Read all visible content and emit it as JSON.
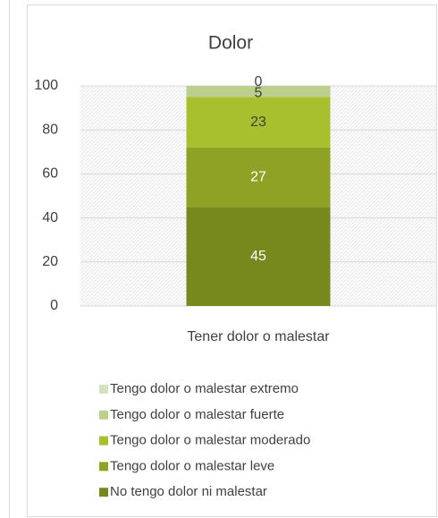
{
  "chart_data": {
    "type": "stacked_bar",
    "title": "Dolor",
    "categories": [
      "Tener dolor o malestar"
    ],
    "series": [
      {
        "name": "No tengo dolor ni malestar",
        "color": "#77881d",
        "values": [
          45
        ]
      },
      {
        "name": "Tengo dolor o malestar leve",
        "color": "#8fa226",
        "values": [
          27
        ]
      },
      {
        "name": "Tengo dolor o malestar moderado",
        "color": "#a8bf2e",
        "values": [
          23
        ]
      },
      {
        "name": "Tengo dolor o malestar fuerte",
        "color": "#bccf8c",
        "values": [
          5
        ]
      },
      {
        "name": "Tengo dolor o malestar extremo",
        "color": "#d6e2bf",
        "values": [
          0
        ]
      }
    ],
    "ylim": [
      0,
      100
    ],
    "yticks": [
      0,
      20,
      40,
      60,
      80,
      100
    ],
    "grid": true,
    "legend": "bottom"
  }
}
